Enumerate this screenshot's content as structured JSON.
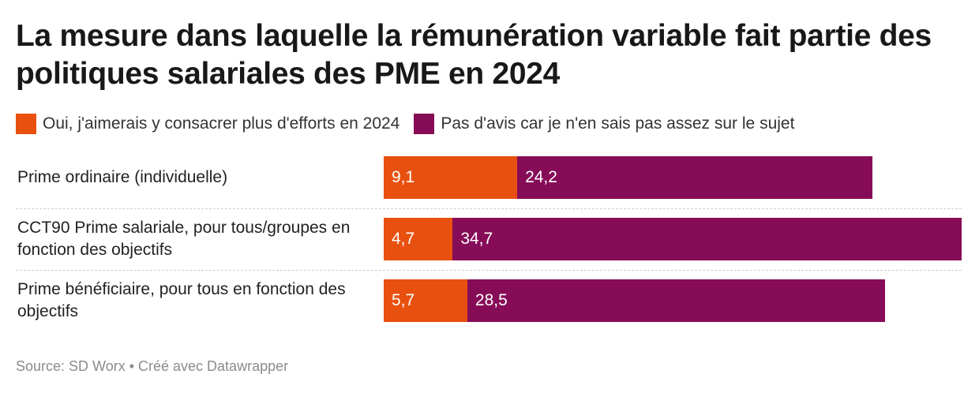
{
  "chart_data": {
    "type": "bar",
    "orientation": "horizontal",
    "stacked": true,
    "title": "La mesure dans laquelle la rémunération variable fait partie des politiques salariales des PME en 2024",
    "categories": [
      "Prime ordinaire (individuelle)",
      "CCT90 Prime salariale, pour tous/groupes en fonction des objectifs",
      "Prime bénéficiaire, pour tous en fonction des objectifs"
    ],
    "series": [
      {
        "name": "Oui, j'aimerais y consacrer plus d'efforts en 2024",
        "color": "#e8500f",
        "values": [
          9.1,
          4.7,
          5.7
        ],
        "labels": [
          "9,1",
          "4,7",
          "5,7"
        ]
      },
      {
        "name": "Pas d'avis car je n'en sais pas assez sur le sujet",
        "color": "#870c58",
        "values": [
          24.2,
          34.7,
          28.5
        ],
        "labels": [
          "24,2",
          "34,7",
          "28,5"
        ]
      }
    ],
    "xlim": [
      0,
      39.4
    ],
    "legend": "top-left",
    "source": "Source: SD Worx • Créé avec Datawrapper"
  }
}
